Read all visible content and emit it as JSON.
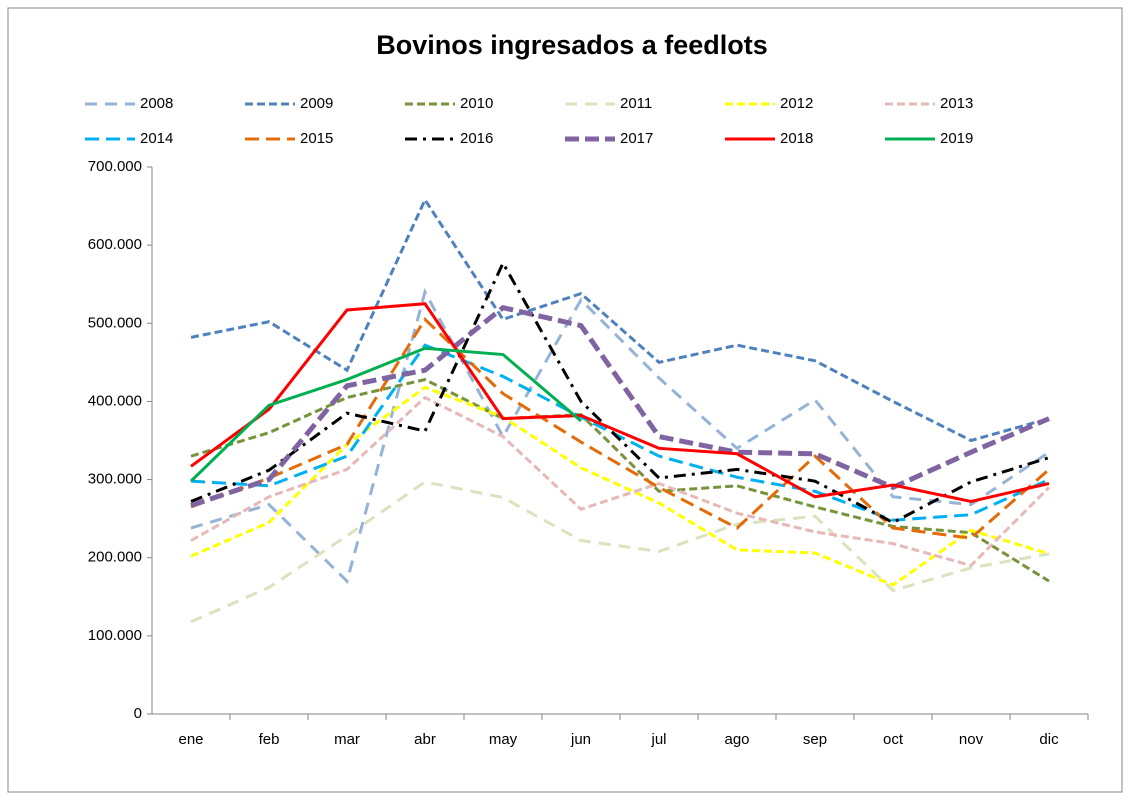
{
  "chart_data": {
    "type": "line",
    "title": "Bovinos ingresados a feedlots",
    "categories": [
      "ene",
      "feb",
      "mar",
      "abr",
      "may",
      "jun",
      "jul",
      "ago",
      "sep",
      "oct",
      "nov",
      "dic"
    ],
    "ylim": [
      0,
      700000
    ],
    "yticks": [
      0,
      {
        "value": 100000,
        "label": "100.000"
      },
      {
        "value": 200000,
        "label": "200.000"
      },
      {
        "value": 300000,
        "label": "300.000"
      },
      {
        "value": 400000,
        "label": "400.000"
      },
      {
        "value": 500000,
        "label": "500.000"
      },
      {
        "value": 600000,
        "label": "600.000"
      },
      {
        "value": 700000,
        "label": "700.000"
      }
    ],
    "series": [
      {
        "name": "2008",
        "color": "#95b3d7",
        "dash": "12,8",
        "width": 3,
        "values": [
          238000,
          268000,
          170000,
          540000,
          355000,
          530000,
          430000,
          340000,
          402000,
          278000,
          268000,
          335000
        ]
      },
      {
        "name": "2009",
        "color": "#4f81bd",
        "dash": "8,4",
        "width": 3,
        "values": [
          482000,
          502000,
          440000,
          658000,
          505000,
          538000,
          450000,
          472000,
          452000,
          400000,
          350000,
          378000
        ]
      },
      {
        "name": "2010",
        "color": "#77933c",
        "dash": "8,4",
        "width": 3,
        "values": [
          330000,
          360000,
          405000,
          428000,
          378000,
          383000,
          285000,
          292000,
          265000,
          240000,
          232000,
          170000
        ]
      },
      {
        "name": "2011",
        "color": "#d7e4bd",
        "dash": "12,8",
        "width": 3,
        "values": [
          118000,
          162000,
          228000,
          297000,
          277000,
          222000,
          208000,
          243000,
          253000,
          158000,
          187000,
          205000
        ]
      },
      {
        "name": "2012",
        "color": "#ffff00",
        "dash": "8,4",
        "width": 3,
        "values": [
          202000,
          245000,
          345000,
          418000,
          380000,
          315000,
          270000,
          210000,
          206000,
          165000,
          235000,
          205000
        ]
      },
      {
        "name": "2013",
        "color": "#e6b9b8",
        "dash": "8,4",
        "width": 3,
        "values": [
          222000,
          278000,
          313000,
          405000,
          355000,
          262000,
          295000,
          257000,
          233000,
          218000,
          190000,
          290000
        ]
      },
      {
        "name": "2014",
        "color": "#00b0f0",
        "dash": "14,7",
        "width": 3,
        "values": [
          298000,
          292000,
          330000,
          472000,
          432000,
          380000,
          330000,
          303000,
          285000,
          248000,
          255000,
          300000
        ]
      },
      {
        "name": "2015",
        "color": "#e36c09",
        "dash": "14,7",
        "width": 3,
        "values": [
          265000,
          302000,
          345000,
          505000,
          410000,
          348000,
          290000,
          238000,
          330000,
          238000,
          225000,
          313000
        ]
      },
      {
        "name": "2016",
        "color": "#000000",
        "dash": "12,6,3,6",
        "width": 3,
        "values": [
          272000,
          312000,
          385000,
          362000,
          577000,
          400000,
          302000,
          313000,
          298000,
          245000,
          297000,
          328000
        ]
      },
      {
        "name": "2017",
        "color": "#8064a2",
        "dash": "14,6",
        "width": 5,
        "values": [
          267000,
          300000,
          420000,
          440000,
          520000,
          497000,
          355000,
          335000,
          333000,
          290000,
          335000,
          378000
        ]
      },
      {
        "name": "2018",
        "color": "#ff0000",
        "dash": "none",
        "width": 3,
        "values": [
          317000,
          390000,
          517000,
          525000,
          378000,
          382000,
          340000,
          333000,
          278000,
          293000,
          272000,
          295000
        ]
      },
      {
        "name": "2019",
        "color": "#00b050",
        "dash": "none",
        "width": 3,
        "values": [
          298000,
          395000,
          428000,
          468000,
          460000,
          375000,
          null,
          null,
          null,
          null,
          null,
          null
        ]
      }
    ]
  }
}
